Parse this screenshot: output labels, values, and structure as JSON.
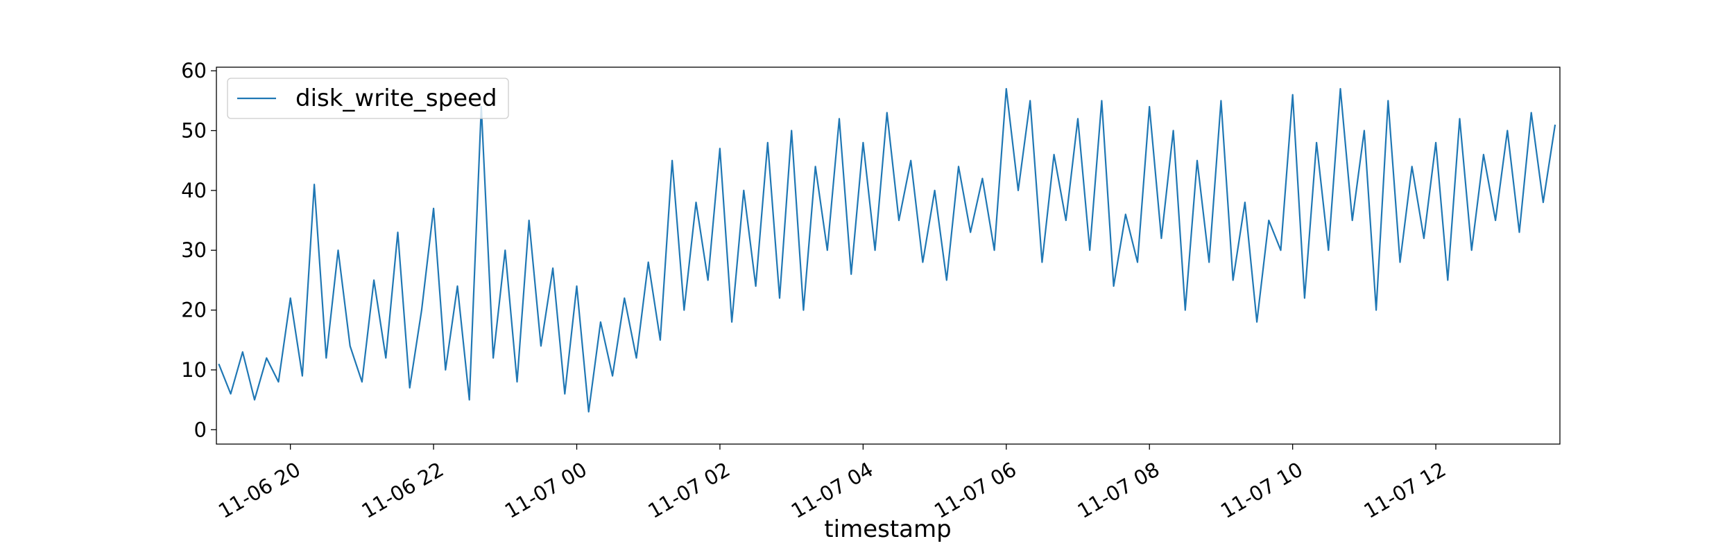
{
  "chart_data": {
    "type": "line",
    "xlabel": "timestamp",
    "x": [
      "11-06 19:00",
      "11-06 19:10",
      "11-06 19:20",
      "11-06 19:30",
      "11-06 19:40",
      "11-06 19:50",
      "11-06 20:00",
      "11-06 20:10",
      "11-06 20:20",
      "11-06 20:30",
      "11-06 20:40",
      "11-06 20:50",
      "11-06 21:00",
      "11-06 21:10",
      "11-06 21:20",
      "11-06 21:30",
      "11-06 21:40",
      "11-06 21:50",
      "11-06 22:00",
      "11-06 22:10",
      "11-06 22:20",
      "11-06 22:30",
      "11-06 22:40",
      "11-06 22:50",
      "11-06 23:00",
      "11-06 23:10",
      "11-06 23:20",
      "11-06 23:30",
      "11-06 23:40",
      "11-06 23:50",
      "11-07 00:00",
      "11-07 00:10",
      "11-07 00:20",
      "11-07 00:30",
      "11-07 00:40",
      "11-07 00:50",
      "11-07 01:00",
      "11-07 01:10",
      "11-07 01:20",
      "11-07 01:30",
      "11-07 01:40",
      "11-07 01:50",
      "11-07 02:00",
      "11-07 02:10",
      "11-07 02:20",
      "11-07 02:30",
      "11-07 02:40",
      "11-07 02:50",
      "11-07 03:00",
      "11-07 03:10",
      "11-07 03:20",
      "11-07 03:30",
      "11-07 03:40",
      "11-07 03:50",
      "11-07 04:00",
      "11-07 04:10",
      "11-07 04:20",
      "11-07 04:30",
      "11-07 04:40",
      "11-07 04:50",
      "11-07 05:00",
      "11-07 05:10",
      "11-07 05:20",
      "11-07 05:30",
      "11-07 05:40",
      "11-07 05:50",
      "11-07 06:00",
      "11-07 06:10",
      "11-07 06:20",
      "11-07 06:30",
      "11-07 06:40",
      "11-07 06:50",
      "11-07 07:00",
      "11-07 07:10",
      "11-07 07:20",
      "11-07 07:30",
      "11-07 07:40",
      "11-07 07:50",
      "11-07 08:00",
      "11-07 08:10",
      "11-07 08:20",
      "11-07 08:30",
      "11-07 08:40",
      "11-07 08:50",
      "11-07 09:00",
      "11-07 09:10",
      "11-07 09:20",
      "11-07 09:30",
      "11-07 09:40",
      "11-07 09:50",
      "11-07 10:00",
      "11-07 10:10",
      "11-07 10:20",
      "11-07 10:30",
      "11-07 10:40",
      "11-07 10:50",
      "11-07 11:00",
      "11-07 11:10",
      "11-07 11:20",
      "11-07 11:30",
      "11-07 11:40",
      "11-07 11:50",
      "11-07 12:00",
      "11-07 12:10",
      "11-07 12:20",
      "11-07 12:30",
      "11-07 12:40",
      "11-07 12:50",
      "11-07 13:00",
      "11-07 13:10",
      "11-07 13:20",
      "11-07 13:30",
      "11-07 13:40"
    ],
    "series": [
      {
        "name": "disk_write_speed",
        "color": "#1f77b4",
        "values": [
          11,
          6,
          13,
          5,
          12,
          8,
          22,
          9,
          41,
          12,
          30,
          14,
          8,
          25,
          12,
          33,
          7,
          20,
          37,
          10,
          24,
          5,
          54,
          12,
          30,
          8,
          35,
          14,
          27,
          6,
          24,
          3,
          18,
          9,
          22,
          12,
          28,
          15,
          45,
          20,
          38,
          25,
          47,
          18,
          40,
          24,
          48,
          22,
          50,
          20,
          44,
          30,
          52,
          26,
          48,
          30,
          53,
          35,
          45,
          28,
          40,
          25,
          44,
          33,
          42,
          30,
          57,
          40,
          55,
          28,
          46,
          35,
          52,
          30,
          55,
          24,
          36,
          28,
          54,
          32,
          50,
          20,
          45,
          28,
          55,
          25,
          38,
          18,
          35,
          30,
          56,
          22,
          48,
          30,
          57,
          35,
          50,
          20,
          55,
          28,
          44,
          32,
          48,
          25,
          52,
          30,
          46,
          35,
          50,
          33,
          53,
          38,
          51
        ]
      }
    ],
    "xlim": [
      "11-06 18:58",
      "11-07 13:44"
    ],
    "xticks": [
      {
        "value": "11-06 20:00",
        "label": "11-06 20"
      },
      {
        "value": "11-06 22:00",
        "label": "11-06 22"
      },
      {
        "value": "11-07 00:00",
        "label": "11-07 00"
      },
      {
        "value": "11-07 02:00",
        "label": "11-07 02"
      },
      {
        "value": "11-07 04:00",
        "label": "11-07 04"
      },
      {
        "value": "11-07 06:00",
        "label": "11-07 06"
      },
      {
        "value": "11-07 08:00",
        "label": "11-07 08"
      },
      {
        "value": "11-07 10:00",
        "label": "11-07 10"
      },
      {
        "value": "11-07 12:00",
        "label": "11-07 12"
      }
    ],
    "ylim": [
      -2.4,
      60.6
    ],
    "yticks": [
      0,
      10,
      20,
      30,
      40,
      50,
      60
    ],
    "grid": false,
    "legend": "upper left"
  }
}
